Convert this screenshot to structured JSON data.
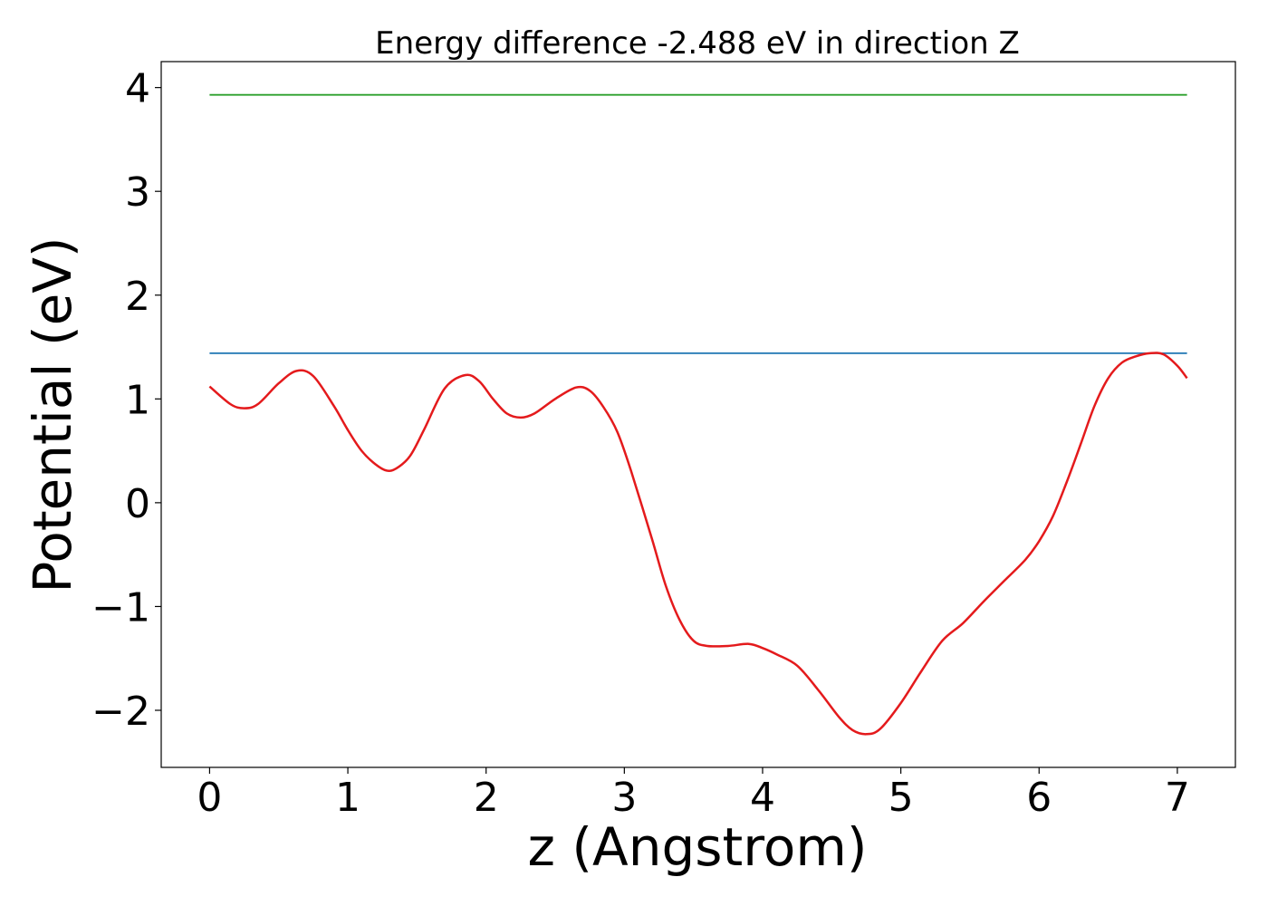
{
  "chart_data": {
    "type": "line",
    "title": "Energy difference -2.488 eV in direction Z",
    "xlabel": "z (Angstrom)",
    "ylabel": "Potential (eV)",
    "xlim": [
      -0.35,
      7.42
    ],
    "ylim": [
      -2.55,
      4.25
    ],
    "xticks": [
      0,
      1,
      2,
      3,
      4,
      5,
      6,
      7
    ],
    "xtick_labels": [
      "0",
      "1",
      "2",
      "3",
      "4",
      "5",
      "6",
      "7"
    ],
    "yticks": [
      -2,
      -1,
      0,
      1,
      2,
      3,
      4
    ],
    "ytick_labels": [
      "−2",
      "−1",
      "0",
      "1",
      "2",
      "3",
      "4"
    ],
    "grid": false,
    "series": [
      {
        "color": "#2ca02c",
        "x": [
          0,
          7.07
        ],
        "y": [
          3.93,
          3.93
        ]
      },
      {
        "color": "#1f77b4",
        "x": [
          0,
          7.07
        ],
        "y": [
          1.44,
          1.44
        ]
      },
      {
        "color": "#e41a1c",
        "x": [
          0,
          0.15,
          0.25,
          0.35,
          0.5,
          0.63,
          0.75,
          0.9,
          1.0,
          1.1,
          1.2,
          1.28,
          1.35,
          1.45,
          1.55,
          1.7,
          1.85,
          1.95,
          2.05,
          2.15,
          2.25,
          2.35,
          2.5,
          2.65,
          2.75,
          2.85,
          2.95,
          3.05,
          3.2,
          3.3,
          3.4,
          3.5,
          3.6,
          3.75,
          3.9,
          4.0,
          4.1,
          4.25,
          4.4,
          4.55,
          4.65,
          4.75,
          4.85,
          5.0,
          5.15,
          5.3,
          5.45,
          5.6,
          5.75,
          5.9,
          6.0,
          6.1,
          6.2,
          6.3,
          6.4,
          6.5,
          6.6,
          6.7,
          6.8,
          6.9,
          7.0,
          7.07
        ],
        "y": [
          1.12,
          0.95,
          0.91,
          0.95,
          1.15,
          1.27,
          1.22,
          0.93,
          0.7,
          0.5,
          0.37,
          0.31,
          0.33,
          0.45,
          0.7,
          1.1,
          1.23,
          1.17,
          1.0,
          0.86,
          0.82,
          0.86,
          1.0,
          1.11,
          1.08,
          0.92,
          0.68,
          0.3,
          -0.35,
          -0.8,
          -1.13,
          -1.33,
          -1.38,
          -1.38,
          -1.36,
          -1.4,
          -1.46,
          -1.57,
          -1.8,
          -2.06,
          -2.19,
          -2.23,
          -2.18,
          -1.93,
          -1.62,
          -1.33,
          -1.16,
          -0.95,
          -0.75,
          -0.55,
          -0.37,
          -0.13,
          0.2,
          0.56,
          0.93,
          1.2,
          1.35,
          1.41,
          1.44,
          1.43,
          1.32,
          1.2
        ]
      }
    ]
  }
}
